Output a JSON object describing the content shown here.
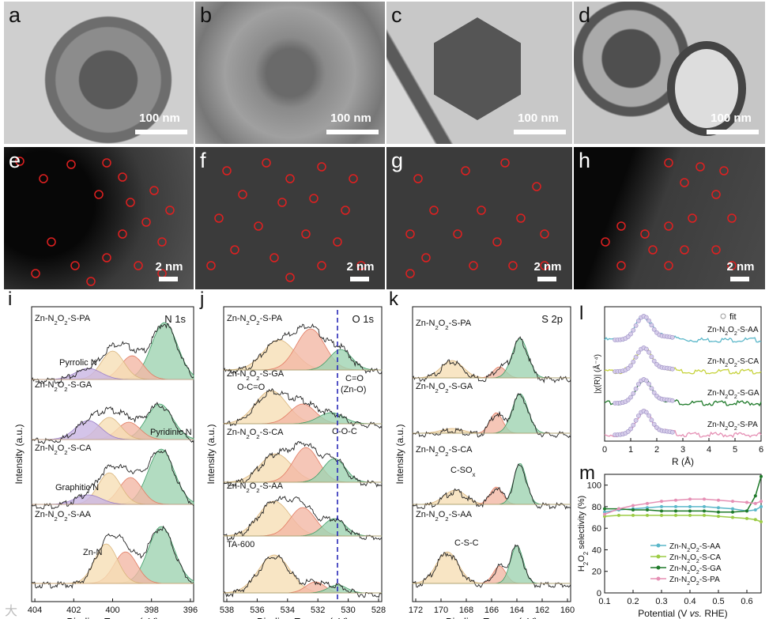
{
  "tem_panels": [
    {
      "label": "a",
      "scale": "100 nm"
    },
    {
      "label": "b",
      "scale": "100 nm"
    },
    {
      "label": "c",
      "scale": "100 nm"
    },
    {
      "label": "d",
      "scale": "100 nm"
    }
  ],
  "haadf_panels": [
    {
      "label": "e",
      "scale": "2 nm"
    },
    {
      "label": "f",
      "scale": "2 nm"
    },
    {
      "label": "g",
      "scale": "2 nm"
    },
    {
      "label": "h",
      "scale": "2 nm"
    }
  ],
  "panel_i": {
    "label": "i",
    "title": "N 1s",
    "ylabel": "Intensity (a.u.)",
    "xlabel": "Binding Energy (eV)",
    "ticks": [
      "404",
      "402",
      "400",
      "398",
      "396"
    ],
    "samples": [
      "Zn-N2O2-S-PA",
      "Zn-N2O2-S-GA",
      "Zn-N2O2-S-CA",
      "Zn-N2O2-S-AA"
    ],
    "annotations": [
      "Pyrrolic N",
      "Pyridinic N",
      "Graphitic N",
      "Zn-N"
    ]
  },
  "panel_j": {
    "label": "j",
    "title": "O 1s",
    "ylabel": "Intensity (a.u.)",
    "xlabel": "Binding Energy (eV)",
    "ticks": [
      "538",
      "536",
      "534",
      "532",
      "530",
      "528"
    ],
    "samples": [
      "Zn-N2O2-S-PA",
      "Zn-N2O2-S-GA",
      "Zn-N2O2-S-CA",
      "Zn-N2O2-S-AA",
      "TA-600"
    ],
    "annotations": [
      "O-C=O",
      "C=O",
      "(Zn-O)",
      "C-O-C"
    ]
  },
  "panel_k": {
    "label": "k",
    "title": "S 2p",
    "ylabel": "Intensity (a.u.)",
    "xlabel": "Binding Energy (eV)",
    "ticks": [
      "172",
      "170",
      "168",
      "166",
      "164",
      "162",
      "160"
    ],
    "samples": [
      "Zn-N2O2-S-PA",
      "Zn-N2O2-S-GA",
      "Zn-N2O2-S-CA",
      "Zn-N2O2-S-AA"
    ],
    "annotations": [
      "C-SOx",
      "C-S-C"
    ]
  },
  "panel_l": {
    "label": "l",
    "legend": "fit",
    "ylabel": "|χ(R)| (Å⁻⁴)",
    "xlabel": "R (Å)",
    "ticks": [
      "0",
      "1",
      "2",
      "3",
      "4",
      "5",
      "6"
    ],
    "samples": [
      "Zn-N2O2-S-AA",
      "Zn-N2O2-S-CA",
      "Zn-N2O2-S-GA",
      "Zn-N2O2-S-PA"
    ]
  },
  "panel_m": {
    "label": "m",
    "ylabel": "H2O2 selectivity (%)",
    "xlabel": "Potential (V vs. RHE)",
    "xticks": [
      "0.1",
      "0.2",
      "0.3",
      "0.4",
      "0.5",
      "0.6"
    ],
    "yticks": [
      "0",
      "20",
      "40",
      "60",
      "80",
      "100"
    ],
    "legend": [
      "Zn-N2O2-S-AA",
      "Zn-N2O2-S-CA",
      "Zn-N2O2-S-GA",
      "Zn-N2O2-S-PA"
    ],
    "colors": [
      "#5bb7c9",
      "#9ccc45",
      "#1f7a2a",
      "#e58fb4"
    ]
  },
  "chart_data": {
    "type": "line",
    "title": "",
    "xlabel": "Potential (V vs. RHE)",
    "ylabel": "H2O2 selectivity (%)",
    "xlim": [
      0.1,
      0.65
    ],
    "ylim": [
      0,
      110
    ],
    "x": [
      0.1,
      0.15,
      0.2,
      0.25,
      0.3,
      0.35,
      0.4,
      0.45,
      0.5,
      0.55,
      0.6,
      0.63,
      0.65
    ],
    "series": [
      {
        "name": "Zn-N2O2-S-AA",
        "values": [
          75,
          77,
          78,
          79,
          80,
          80,
          80,
          80,
          79,
          78,
          76,
          77,
          80
        ]
      },
      {
        "name": "Zn-N2O2-S-CA",
        "values": [
          71,
          72,
          72,
          72,
          72,
          72,
          72,
          72,
          71,
          70,
          69,
          68,
          66
        ]
      },
      {
        "name": "Zn-N2O2-S-GA",
        "values": [
          78,
          78,
          77,
          77,
          76,
          76,
          76,
          76,
          75,
          75,
          76,
          90,
          108
        ]
      },
      {
        "name": "Zn-N2O2-S-PA",
        "values": [
          73,
          78,
          81,
          83,
          85,
          86,
          87,
          87,
          86,
          85,
          84,
          83,
          85
        ]
      }
    ]
  },
  "watermark": "大"
}
